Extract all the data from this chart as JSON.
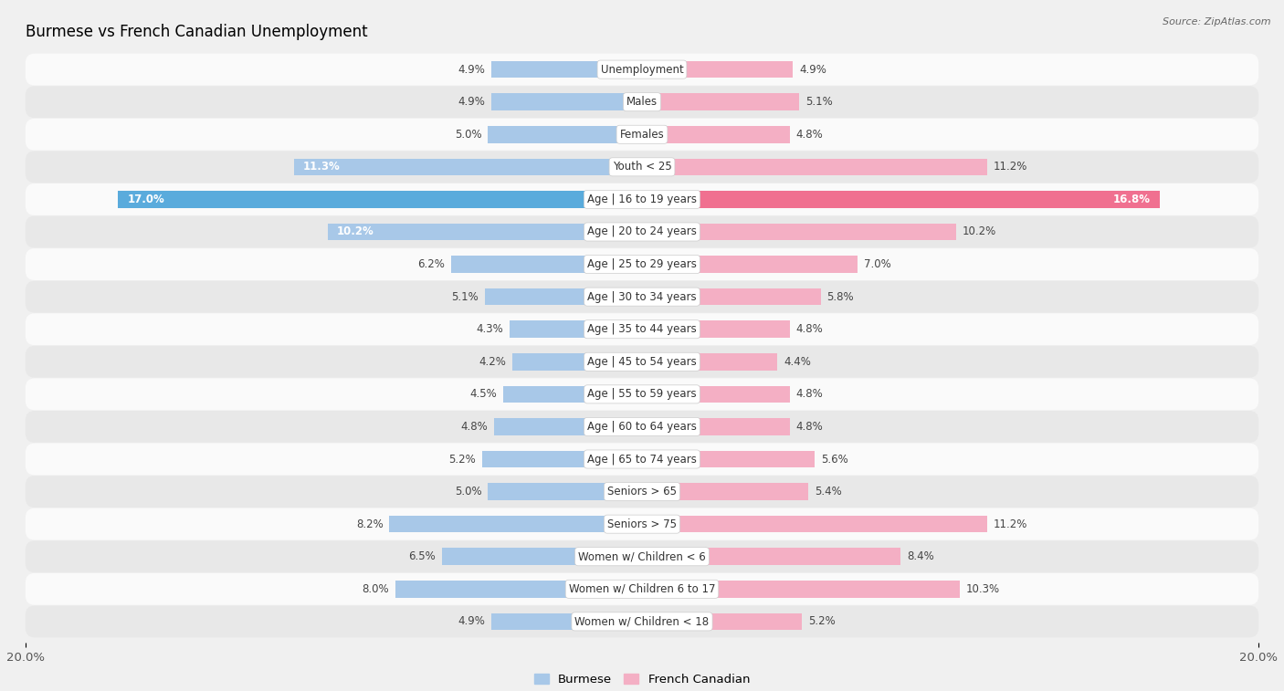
{
  "title": "Burmese vs French Canadian Unemployment",
  "source": "Source: ZipAtlas.com",
  "categories": [
    "Unemployment",
    "Males",
    "Females",
    "Youth < 25",
    "Age | 16 to 19 years",
    "Age | 20 to 24 years",
    "Age | 25 to 29 years",
    "Age | 30 to 34 years",
    "Age | 35 to 44 years",
    "Age | 45 to 54 years",
    "Age | 55 to 59 years",
    "Age | 60 to 64 years",
    "Age | 65 to 74 years",
    "Seniors > 65",
    "Seniors > 75",
    "Women w/ Children < 6",
    "Women w/ Children 6 to 17",
    "Women w/ Children < 18"
  ],
  "burmese": [
    4.9,
    4.9,
    5.0,
    11.3,
    17.0,
    10.2,
    6.2,
    5.1,
    4.3,
    4.2,
    4.5,
    4.8,
    5.2,
    5.0,
    8.2,
    6.5,
    8.0,
    4.9
  ],
  "french_canadian": [
    4.9,
    5.1,
    4.8,
    11.2,
    16.8,
    10.2,
    7.0,
    5.8,
    4.8,
    4.4,
    4.8,
    4.8,
    5.6,
    5.4,
    11.2,
    8.4,
    10.3,
    5.2
  ],
  "burmese_color": "#a8c8e8",
  "french_canadian_color": "#f4afc4",
  "burmese_highlight_color": "#5aabdc",
  "french_canadian_highlight_color": "#f07090",
  "background_color": "#f0f0f0",
  "row_light_color": "#fafafa",
  "row_dark_color": "#e8e8e8",
  "xlim": 20.0,
  "label_fontsize": 8.5,
  "title_fontsize": 12,
  "bar_height": 0.52,
  "legend_labels": [
    "Burmese",
    "French Canadian"
  ]
}
